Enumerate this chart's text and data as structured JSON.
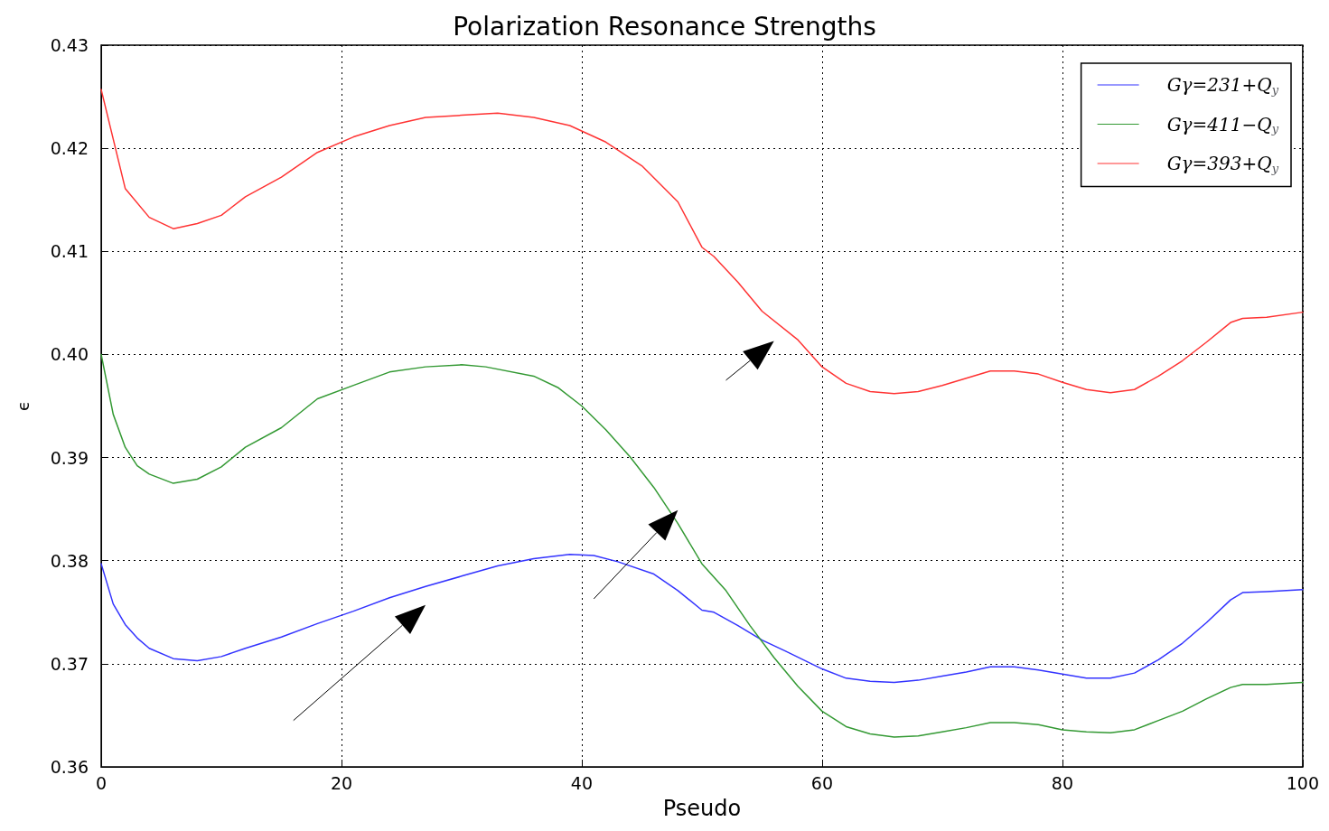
{
  "chart_data": {
    "type": "line",
    "title": "Polarization Resonance Strengths",
    "xlabel": "Pseudo",
    "ylabel": "ϵ",
    "xlim": [
      0,
      100
    ],
    "xticks": [
      0,
      20,
      40,
      60,
      80,
      100
    ],
    "ylim": [
      0.36,
      0.43
    ],
    "yticks": [
      {
        "value": 0.36,
        "label": "0.36"
      },
      {
        "value": 0.37,
        "label": "0.37"
      },
      {
        "value": 0.38,
        "label": "0.38"
      },
      {
        "value": 0.39,
        "label": "0.39"
      },
      {
        "value": 0.4,
        "label": "0.40"
      },
      {
        "value": 0.41,
        "label": "0.41"
      },
      {
        "value": 0.42,
        "label": "0.42"
      },
      {
        "value": 0.43,
        "label": "0.43"
      }
    ],
    "grid": true,
    "legend": "top right",
    "marker": "none",
    "line_style": "solid",
    "series": [
      {
        "name": "Gγ=231+Q$_{y}$",
        "color": "#3333ff",
        "x": [
          0,
          1,
          2,
          3,
          4,
          6,
          8,
          10,
          12,
          15,
          18,
          21,
          24,
          27,
          30,
          33,
          36,
          39,
          41,
          43,
          46,
          48,
          50,
          51,
          53,
          55,
          57,
          60,
          62,
          64,
          66,
          68,
          70,
          72,
          74,
          76,
          78,
          80,
          82,
          84,
          86,
          88,
          90,
          92,
          94,
          95,
          97,
          100
        ],
        "values": [
          0.3797,
          0.3758,
          0.3738,
          0.3725,
          0.3715,
          0.3705,
          0.3703,
          0.3707,
          0.3715,
          0.3726,
          0.3739,
          0.3751,
          0.3764,
          0.3775,
          0.3785,
          0.3795,
          0.3802,
          0.3806,
          0.3805,
          0.3799,
          0.3787,
          0.3771,
          0.3752,
          0.375,
          0.3737,
          0.3723,
          0.3712,
          0.3695,
          0.3686,
          0.3683,
          0.3682,
          0.3684,
          0.3688,
          0.3692,
          0.3697,
          0.3697,
          0.3694,
          0.369,
          0.3686,
          0.3686,
          0.3691,
          0.3704,
          0.372,
          0.374,
          0.3762,
          0.3769,
          0.377,
          0.3772
        ]
      },
      {
        "name": "Gγ=411−Q$_{y}$",
        "color": "#339933",
        "x": [
          0,
          1,
          2,
          3,
          4,
          6,
          8,
          10,
          12,
          15,
          18,
          21,
          24,
          27,
          30,
          32,
          36,
          38,
          40,
          42,
          44,
          46,
          48,
          50,
          52,
          54,
          56,
          58,
          60,
          62,
          64,
          66,
          68,
          70,
          72,
          74,
          76,
          78,
          80,
          82,
          84,
          86,
          88,
          90,
          92,
          94,
          95,
          97,
          100
        ],
        "values": [
          0.4,
          0.3942,
          0.391,
          0.3892,
          0.3884,
          0.3875,
          0.3879,
          0.3891,
          0.391,
          0.3929,
          0.3957,
          0.397,
          0.3983,
          0.3988,
          0.399,
          0.3988,
          0.3979,
          0.3968,
          0.395,
          0.3927,
          0.3901,
          0.3871,
          0.3836,
          0.3797,
          0.3771,
          0.3737,
          0.3706,
          0.3678,
          0.3654,
          0.3639,
          0.3632,
          0.3629,
          0.363,
          0.3634,
          0.3638,
          0.3643,
          0.3643,
          0.3641,
          0.3636,
          0.3634,
          0.3633,
          0.3636,
          0.3645,
          0.3654,
          0.3666,
          0.3677,
          0.368,
          0.368,
          0.3682
        ]
      },
      {
        "name": "Gγ=393+Q$_{y}$",
        "color": "#ff3333",
        "x": [
          0,
          2,
          4,
          6,
          8,
          10,
          12,
          15,
          18,
          21,
          24,
          27,
          30,
          33,
          36,
          39,
          42,
          45,
          48,
          50,
          51,
          53,
          55,
          58,
          60,
          62,
          64,
          66,
          68,
          70,
          72,
          74,
          76,
          78,
          80,
          82,
          84,
          86,
          88,
          90,
          92,
          94,
          95,
          97,
          100
        ],
        "values": [
          0.4257,
          0.4161,
          0.4133,
          0.4122,
          0.4127,
          0.4135,
          0.4153,
          0.4172,
          0.4196,
          0.4211,
          0.4222,
          0.423,
          0.4232,
          0.4234,
          0.423,
          0.4222,
          0.4206,
          0.4183,
          0.4148,
          0.4104,
          0.4095,
          0.407,
          0.4042,
          0.4014,
          0.3988,
          0.3972,
          0.3964,
          0.3962,
          0.3964,
          0.397,
          0.3977,
          0.3984,
          0.3984,
          0.3981,
          0.3973,
          0.3966,
          0.3963,
          0.3966,
          0.3979,
          0.3994,
          0.4012,
          0.4031,
          0.4035,
          0.4036,
          0.4041
        ]
      }
    ]
  }
}
